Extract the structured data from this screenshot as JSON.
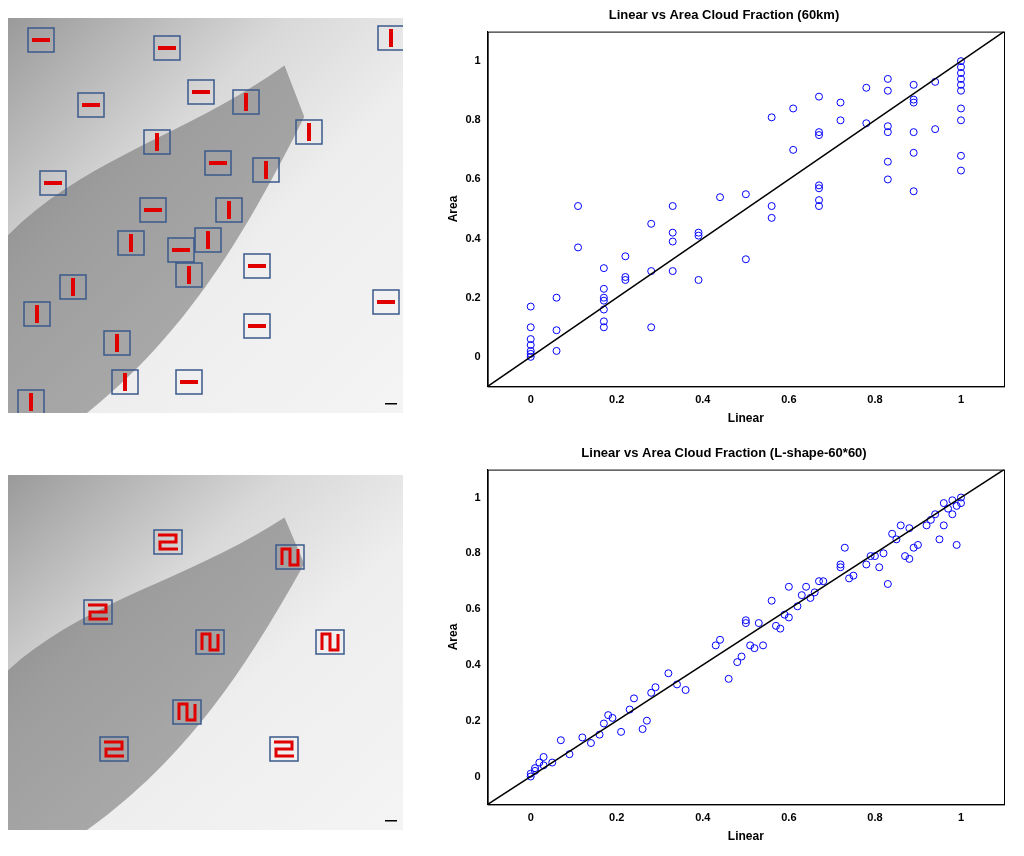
{
  "chart_data": [
    {
      "type": "scatter",
      "title": "Linear vs Area Cloud Fraction (60km)",
      "x_label": "Linear",
      "y_label": "Area",
      "xlim": [
        -0.1,
        1.1
      ],
      "ylim": [
        -0.1,
        1.1
      ],
      "xticks": [
        0,
        0.2,
        0.4,
        0.6,
        0.8,
        1
      ],
      "yticks": [
        0,
        0.2,
        0.4,
        0.6,
        0.8,
        1
      ],
      "grid": false,
      "series": [
        {
          "type": "scatter",
          "color": "#0000ff",
          "marker": "circle",
          "points": [
            [
              0,
              0
            ],
            [
              0,
              0.01
            ],
            [
              0,
              0.02
            ],
            [
              0,
              0.04
            ],
            [
              0,
              0.06
            ],
            [
              0,
              0.1
            ],
            [
              0,
              0.17
            ],
            [
              0.06,
              0.02
            ],
            [
              0.06,
              0.09
            ],
            [
              0.06,
              0.2
            ],
            [
              0.11,
              0.37
            ],
            [
              0.11,
              0.51
            ],
            [
              0.17,
              0.1
            ],
            [
              0.17,
              0.12
            ],
            [
              0.17,
              0.16
            ],
            [
              0.17,
              0.19
            ],
            [
              0.17,
              0.2
            ],
            [
              0.17,
              0.23
            ],
            [
              0.17,
              0.3
            ],
            [
              0.22,
              0.26
            ],
            [
              0.22,
              0.27
            ],
            [
              0.22,
              0.34
            ],
            [
              0.28,
              0.1
            ],
            [
              0.28,
              0.29
            ],
            [
              0.28,
              0.45
            ],
            [
              0.33,
              0.29
            ],
            [
              0.33,
              0.39
            ],
            [
              0.33,
              0.42
            ],
            [
              0.33,
              0.51
            ],
            [
              0.39,
              0.26
            ],
            [
              0.39,
              0.41
            ],
            [
              0.39,
              0.42
            ],
            [
              0.44,
              0.54
            ],
            [
              0.5,
              0.33
            ],
            [
              0.5,
              0.55
            ],
            [
              0.56,
              0.47
            ],
            [
              0.56,
              0.51
            ],
            [
              0.56,
              0.81
            ],
            [
              0.61,
              0.7
            ],
            [
              0.61,
              0.84
            ],
            [
              0.67,
              0.51
            ],
            [
              0.67,
              0.53
            ],
            [
              0.67,
              0.57
            ],
            [
              0.67,
              0.58
            ],
            [
              0.67,
              0.75
            ],
            [
              0.67,
              0.76
            ],
            [
              0.67,
              0.88
            ],
            [
              0.72,
              0.8
            ],
            [
              0.72,
              0.86
            ],
            [
              0.78,
              0.79
            ],
            [
              0.78,
              0.91
            ],
            [
              0.83,
              0.6
            ],
            [
              0.83,
              0.66
            ],
            [
              0.83,
              0.76
            ],
            [
              0.83,
              0.78
            ],
            [
              0.83,
              0.9
            ],
            [
              0.83,
              0.94
            ],
            [
              0.89,
              0.56
            ],
            [
              0.89,
              0.69
            ],
            [
              0.89,
              0.76
            ],
            [
              0.89,
              0.86
            ],
            [
              0.89,
              0.87
            ],
            [
              0.89,
              0.92
            ],
            [
              0.94,
              0.77
            ],
            [
              0.94,
              0.93
            ],
            [
              1,
              0.63
            ],
            [
              1,
              0.68
            ],
            [
              1,
              0.8
            ],
            [
              1,
              0.84
            ],
            [
              1,
              0.9
            ],
            [
              1,
              0.92
            ],
            [
              1,
              0.94
            ],
            [
              1,
              0.96
            ],
            [
              1,
              0.98
            ],
            [
              1,
              1
            ]
          ]
        },
        {
          "type": "line",
          "color": "#000000",
          "line_style": "solid",
          "points": [
            [
              -0.1,
              -0.1
            ],
            [
              1.1,
              1.1
            ]
          ]
        }
      ]
    },
    {
      "type": "scatter",
      "title": "Linear vs Area Cloud Fraction (L-shape-60*60)",
      "x_label": "Linear",
      "y_label": "Area",
      "xlim": [
        -0.1,
        1.1
      ],
      "ylim": [
        -0.1,
        1.1
      ],
      "xticks": [
        0,
        0.2,
        0.4,
        0.6,
        0.8,
        1
      ],
      "yticks": [
        0,
        0.2,
        0.4,
        0.6,
        0.8,
        1
      ],
      "grid": false,
      "series": [
        {
          "type": "scatter",
          "color": "#0000ff",
          "marker": "circle",
          "points": [
            [
              0,
              0
            ],
            [
              0,
              0.01
            ],
            [
              0.01,
              0.02
            ],
            [
              0.01,
              0.03
            ],
            [
              0.02,
              0.05
            ],
            [
              0.03,
              0.04
            ],
            [
              0.03,
              0.07
            ],
            [
              0.05,
              0.05
            ],
            [
              0.07,
              0.13
            ],
            [
              0.09,
              0.08
            ],
            [
              0.12,
              0.14
            ],
            [
              0.14,
              0.12
            ],
            [
              0.16,
              0.15
            ],
            [
              0.17,
              0.19
            ],
            [
              0.18,
              0.22
            ],
            [
              0.19,
              0.21
            ],
            [
              0.21,
              0.16
            ],
            [
              0.23,
              0.24
            ],
            [
              0.24,
              0.28
            ],
            [
              0.26,
              0.17
            ],
            [
              0.27,
              0.2
            ],
            [
              0.28,
              0.3
            ],
            [
              0.29,
              0.32
            ],
            [
              0.32,
              0.37
            ],
            [
              0.34,
              0.33
            ],
            [
              0.36,
              0.31
            ],
            [
              0.43,
              0.47
            ],
            [
              0.44,
              0.49
            ],
            [
              0.46,
              0.35
            ],
            [
              0.48,
              0.41
            ],
            [
              0.49,
              0.43
            ],
            [
              0.5,
              0.55
            ],
            [
              0.5,
              0.56
            ],
            [
              0.51,
              0.47
            ],
            [
              0.52,
              0.46
            ],
            [
              0.53,
              0.55
            ],
            [
              0.54,
              0.47
            ],
            [
              0.56,
              0.63
            ],
            [
              0.57,
              0.54
            ],
            [
              0.58,
              0.53
            ],
            [
              0.59,
              0.58
            ],
            [
              0.6,
              0.57
            ],
            [
              0.6,
              0.68
            ],
            [
              0.62,
              0.61
            ],
            [
              0.63,
              0.65
            ],
            [
              0.64,
              0.68
            ],
            [
              0.65,
              0.64
            ],
            [
              0.66,
              0.66
            ],
            [
              0.67,
              0.7
            ],
            [
              0.68,
              0.7
            ],
            [
              0.72,
              0.75
            ],
            [
              0.72,
              0.76
            ],
            [
              0.73,
              0.82
            ],
            [
              0.74,
              0.71
            ],
            [
              0.75,
              0.72
            ],
            [
              0.78,
              0.76
            ],
            [
              0.79,
              0.79
            ],
            [
              0.8,
              0.79
            ],
            [
              0.81,
              0.75
            ],
            [
              0.82,
              0.8
            ],
            [
              0.83,
              0.69
            ],
            [
              0.84,
              0.87
            ],
            [
              0.85,
              0.85
            ],
            [
              0.86,
              0.9
            ],
            [
              0.87,
              0.79
            ],
            [
              0.88,
              0.89
            ],
            [
              0.88,
              0.78
            ],
            [
              0.89,
              0.82
            ],
            [
              0.9,
              0.83
            ],
            [
              0.92,
              0.9
            ],
            [
              0.93,
              0.92
            ],
            [
              0.94,
              0.94
            ],
            [
              0.95,
              0.85
            ],
            [
              0.96,
              0.9
            ],
            [
              0.96,
              0.98
            ],
            [
              0.97,
              0.96
            ],
            [
              0.98,
              0.94
            ],
            [
              0.98,
              0.99
            ],
            [
              0.99,
              0.97
            ],
            [
              0.99,
              0.83
            ],
            [
              1,
              0.98
            ],
            [
              1,
              1
            ]
          ]
        },
        {
          "type": "line",
          "color": "#000000",
          "line_style": "solid",
          "points": [
            [
              -0.1,
              -0.1
            ],
            [
              1.1,
              1.1
            ]
          ]
        }
      ]
    }
  ]
}
